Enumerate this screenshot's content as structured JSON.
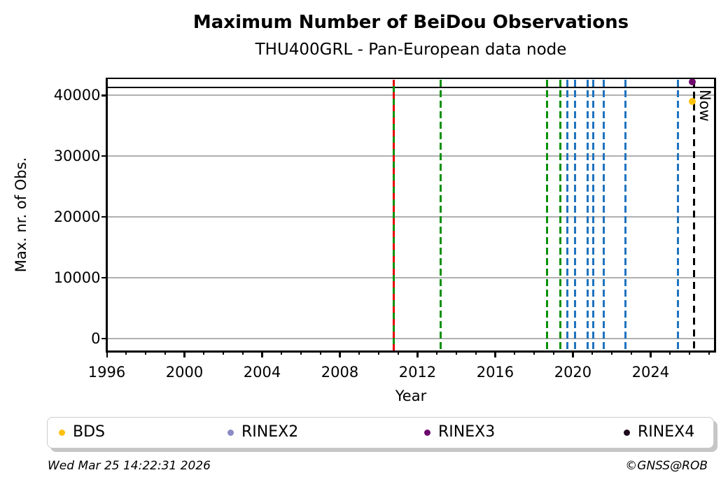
{
  "figure": {
    "title": "Maximum Number of BeiDou Observations",
    "subtitle": "THU400GRL - Pan-European data node",
    "footer_left": "Wed Mar 25 14:22:31 2026",
    "footer_right": "©GNSS@ROB"
  },
  "chart_data": {
    "type": "scatter",
    "title": "Maximum Number of BeiDou Observations",
    "subtitle": "THU400GRL - Pan-European data node",
    "xlabel": "Year",
    "ylabel": "Max. nr. of Obs.",
    "xlim": [
      1996,
      2027.3
    ],
    "ylim": [
      -2100,
      42800
    ],
    "x_major_ticks": [
      1996,
      2000,
      2004,
      2008,
      2012,
      2016,
      2020,
      2024
    ],
    "x_minor_tick_step": 1,
    "y_ticks": [
      0,
      10000,
      20000,
      30000,
      40000
    ],
    "grid": "horizontal-only",
    "grid_color": "#b0b0b0",
    "legend_position": "bottom",
    "series": [
      {
        "name": "BDS",
        "color": "#fdc10d",
        "points": [
          {
            "x": 2026.15,
            "y": 39000
          }
        ]
      },
      {
        "name": "RINEX2",
        "color": "#8a8ac4",
        "points": []
      },
      {
        "name": "RINEX3",
        "color": "#6e0a6e",
        "points": [
          {
            "x": 2026.15,
            "y": 42200
          }
        ]
      },
      {
        "name": "RINEX4",
        "color": "#1c0a1c",
        "points": []
      }
    ],
    "hlines": [
      {
        "y": 41300,
        "color": "#000000",
        "style": "solid"
      }
    ],
    "vlines": {
      "green_dashed": [
        2010.78,
        2013.2,
        2018.66,
        2019.36
      ],
      "red_dashed_overlay": [
        2010.78
      ],
      "blue_dashed": [
        2019.71,
        2020.1,
        2020.76,
        2021.03,
        2021.57,
        2022.71,
        2025.41
      ],
      "green_color": "#089008",
      "red_color": "#e60000",
      "blue_color": "#1e73be",
      "now": {
        "x": 2026.25,
        "label": "Now",
        "color": "#000000"
      }
    }
  },
  "legend": {
    "items": [
      {
        "label": "BDS",
        "color": "#fdc10d"
      },
      {
        "label": "RINEX2",
        "color": "#8a8ac4"
      },
      {
        "label": "RINEX3",
        "color": "#6e0a6e"
      },
      {
        "label": "RINEX4",
        "color": "#1c0a1c"
      }
    ]
  }
}
